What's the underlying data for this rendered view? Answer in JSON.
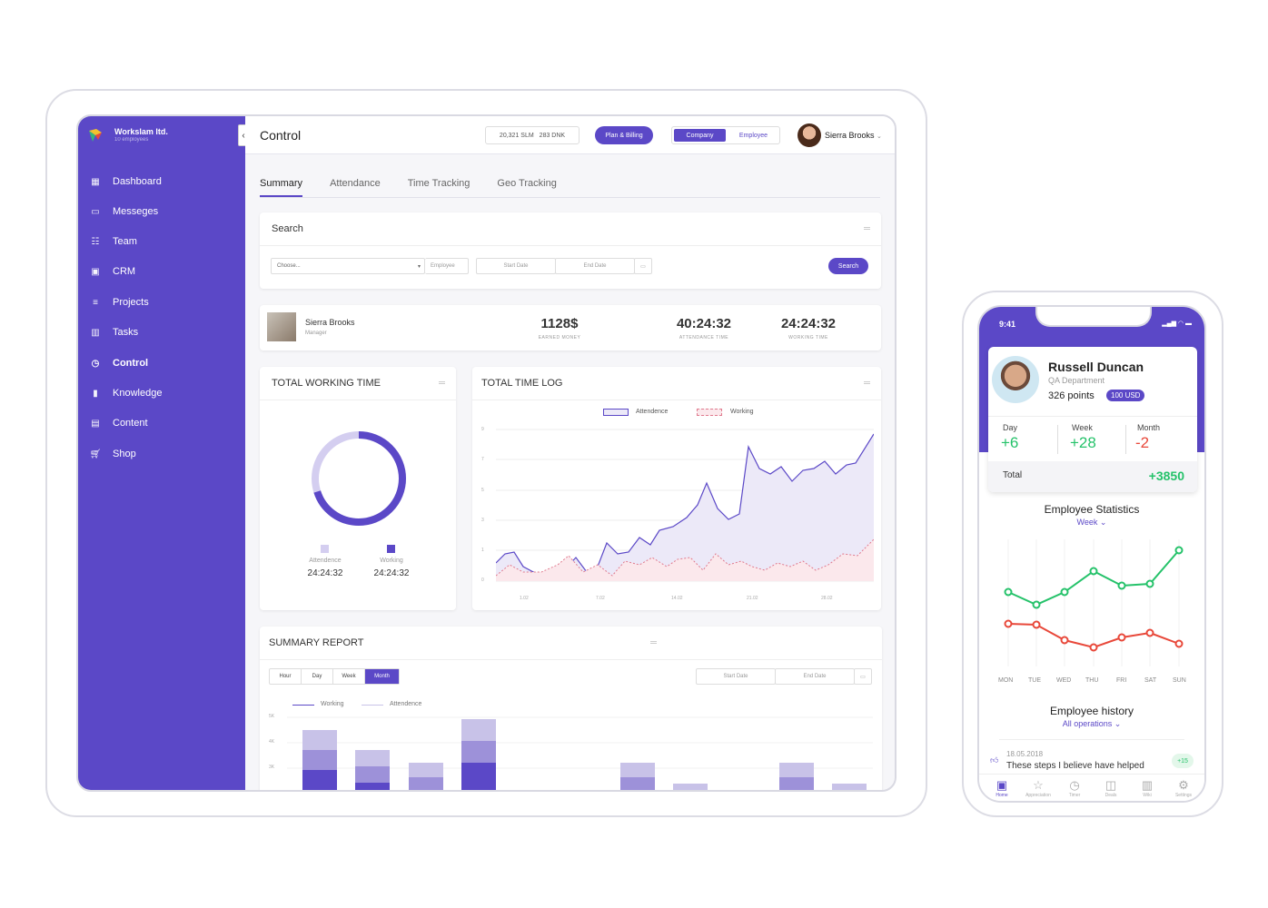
{
  "sidebar": {
    "org_name": "Workslam ltd.",
    "org_sub": "10 employees",
    "items": [
      {
        "label": "Dashboard",
        "icon": "grid-icon"
      },
      {
        "label": "Messeges",
        "icon": "chat-icon"
      },
      {
        "label": "Team",
        "icon": "team-icon"
      },
      {
        "label": "CRM",
        "icon": "crm-icon"
      },
      {
        "label": "Projects",
        "icon": "list-icon"
      },
      {
        "label": "Tasks",
        "icon": "columns-icon"
      },
      {
        "label": "Control",
        "icon": "clock-icon"
      },
      {
        "label": "Knowledge",
        "icon": "book-icon"
      },
      {
        "label": "Content",
        "icon": "content-icon"
      },
      {
        "label": "Shop",
        "icon": "cart-icon"
      }
    ],
    "active": "Control"
  },
  "topbar": {
    "title": "Control",
    "counter_a": "20,321 SLM",
    "counter_b": "283 DNK",
    "plan_button": "Plan & Billing",
    "seg_company": "Company",
    "seg_employee": "Employee",
    "user": "Sierra Brooks"
  },
  "tabs": [
    "Summary",
    "Attendance",
    "Time Tracking",
    "Geo Tracking"
  ],
  "search": {
    "title": "Search",
    "choose": "Choose...",
    "employee": "Employee",
    "start": "Start Date",
    "end": "End Date",
    "button": "Search"
  },
  "employee": {
    "name": "Sierra Brooks",
    "role": "Manager",
    "earned": "1128$",
    "earned_label": "EARNED MONEY",
    "attendance": "40:24:32",
    "attendance_label": "ATTENDANCE TIME",
    "working": "24:24:32",
    "working_label": "WORKING TIME"
  },
  "total_working": {
    "title": "TOTAL WORKING TIME",
    "attendance_label": "Attendence",
    "attendance_value": "24:24:32",
    "working_label": "Working",
    "working_value": "24:24:32",
    "working_fraction": 0.7
  },
  "time_log": {
    "title": "TOTAL TIME LOG",
    "legend_a": "Attendence",
    "legend_b": "Working",
    "y_ticks": [
      "9",
      "7",
      "5",
      "3",
      "1",
      "0"
    ],
    "x_ticks": [
      "1.02",
      "7.02",
      "14.02",
      "21.02",
      "28.02"
    ]
  },
  "summary": {
    "title": "SUMMARY REPORT",
    "ranges": [
      "Hour",
      "Day",
      "Week",
      "Month"
    ],
    "active_range": "Month",
    "start": "Start Date",
    "end": "End Date",
    "legend_a": "Working",
    "legend_b": "Attendence",
    "y_ticks": [
      "5K",
      "4K",
      "3K"
    ]
  },
  "phone": {
    "time": "9:41",
    "name": "Russell Duncan",
    "department": "QA Department",
    "points": "326 points",
    "badge": "100 USD",
    "day_label": "Day",
    "day_value": "+6",
    "week_label": "Week",
    "week_value": "+28",
    "month_label": "Month",
    "month_value": "-2",
    "total_label": "Total",
    "total_value": "+3850",
    "stats_title": "Employee Statistics",
    "stats_period": "Week ⌄",
    "days": [
      "MON",
      "TUE",
      "WED",
      "THU",
      "FRI",
      "SAT",
      "SUN"
    ],
    "history_title": "Employee history",
    "history_filter": "All operations ⌄",
    "history_date": "18.05.2018",
    "history_text": "These steps I believe have helped",
    "history_badge": "+15",
    "bottom_nav": [
      "Home",
      "Appreciation",
      "Timer",
      "Deals",
      "Wiki",
      "Settings"
    ]
  },
  "colors": {
    "accent": "#5b48c7",
    "green": "#25c26a",
    "red": "#e8483a"
  }
}
